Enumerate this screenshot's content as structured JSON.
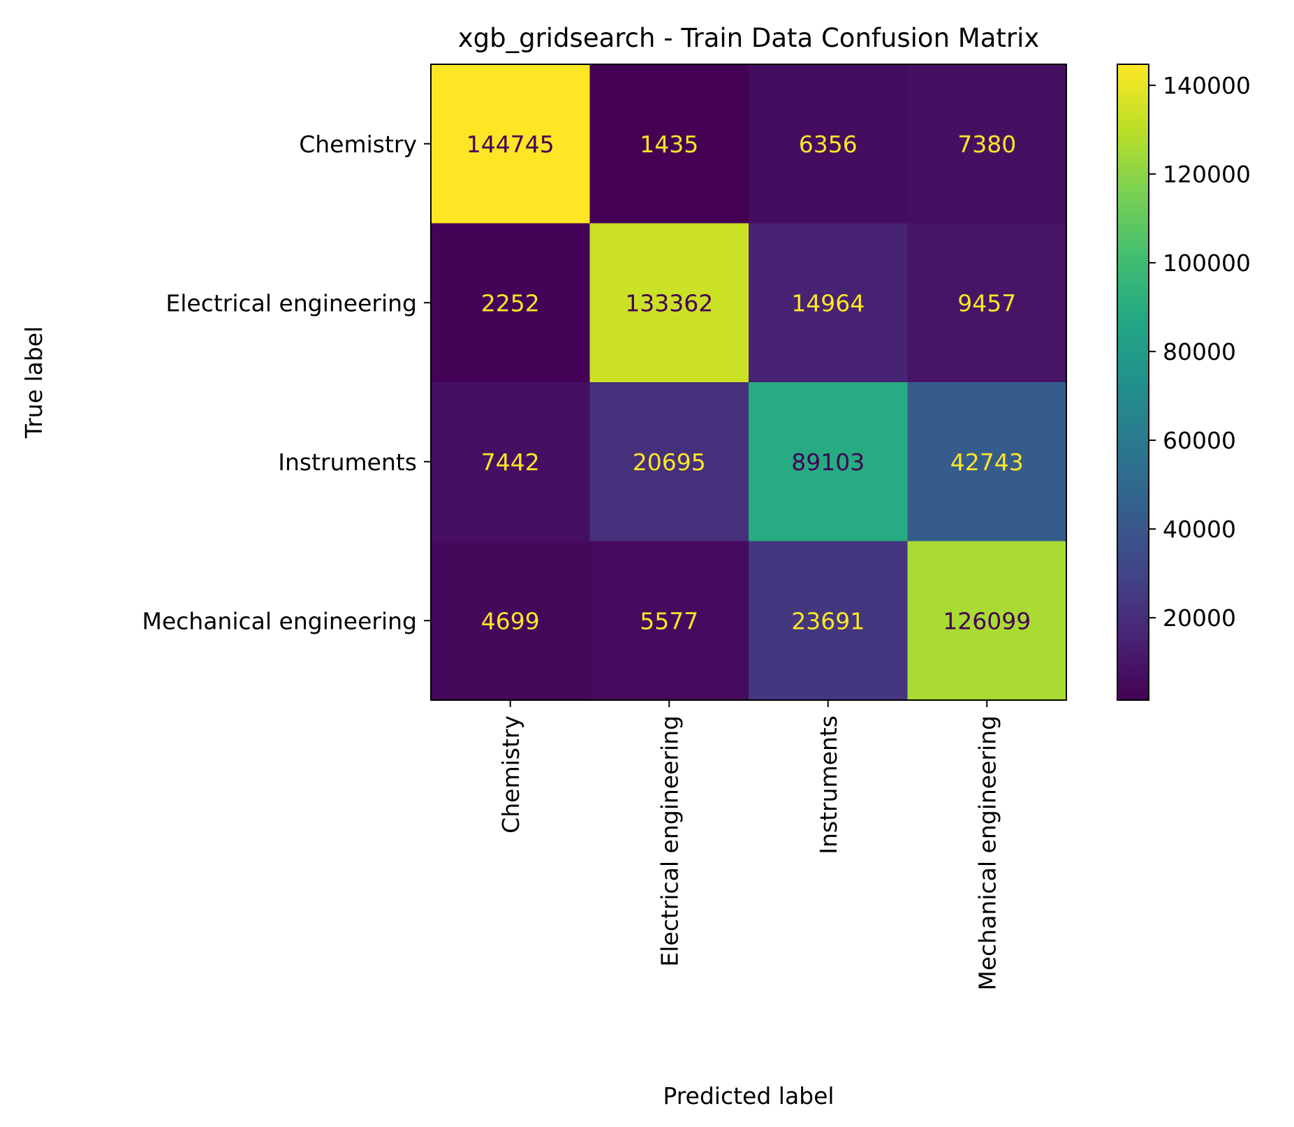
{
  "chart_data": {
    "type": "heatmap",
    "title": "xgb_gridsearch - Train Data Confusion Matrix",
    "xlabel": "Predicted label",
    "ylabel": "True label",
    "x_categories": [
      "Chemistry",
      "Electrical engineering",
      "Instruments",
      "Mechanical engineering"
    ],
    "y_categories": [
      "Chemistry",
      "Electrical engineering",
      "Instruments",
      "Mechanical engineering"
    ],
    "matrix": [
      [
        144745,
        1435,
        6356,
        7380
      ],
      [
        2252,
        133362,
        14964,
        9457
      ],
      [
        7442,
        20695,
        89103,
        42743
      ],
      [
        4699,
        5577,
        23691,
        126099
      ]
    ],
    "cell_labels": [
      [
        "144745",
        "1435",
        "6356",
        "7380"
      ],
      [
        "2252",
        "133362",
        "14964",
        "9457"
      ],
      [
        "7442",
        "20695",
        "89103",
        "42743"
      ],
      [
        "4699",
        "5577",
        "23691",
        "126099"
      ]
    ],
    "colormap": "viridis",
    "colorbar_range": [
      1435,
      144745
    ],
    "colorbar_ticks": [
      20000,
      40000,
      60000,
      80000,
      100000,
      120000,
      140000
    ],
    "colorbar_tick_labels": [
      "20000",
      "40000",
      "60000",
      "80000",
      "100000",
      "120000",
      "140000"
    ],
    "grid": false,
    "text_colors": {
      "on_dark": "#fde725",
      "on_light": "#440154"
    }
  }
}
